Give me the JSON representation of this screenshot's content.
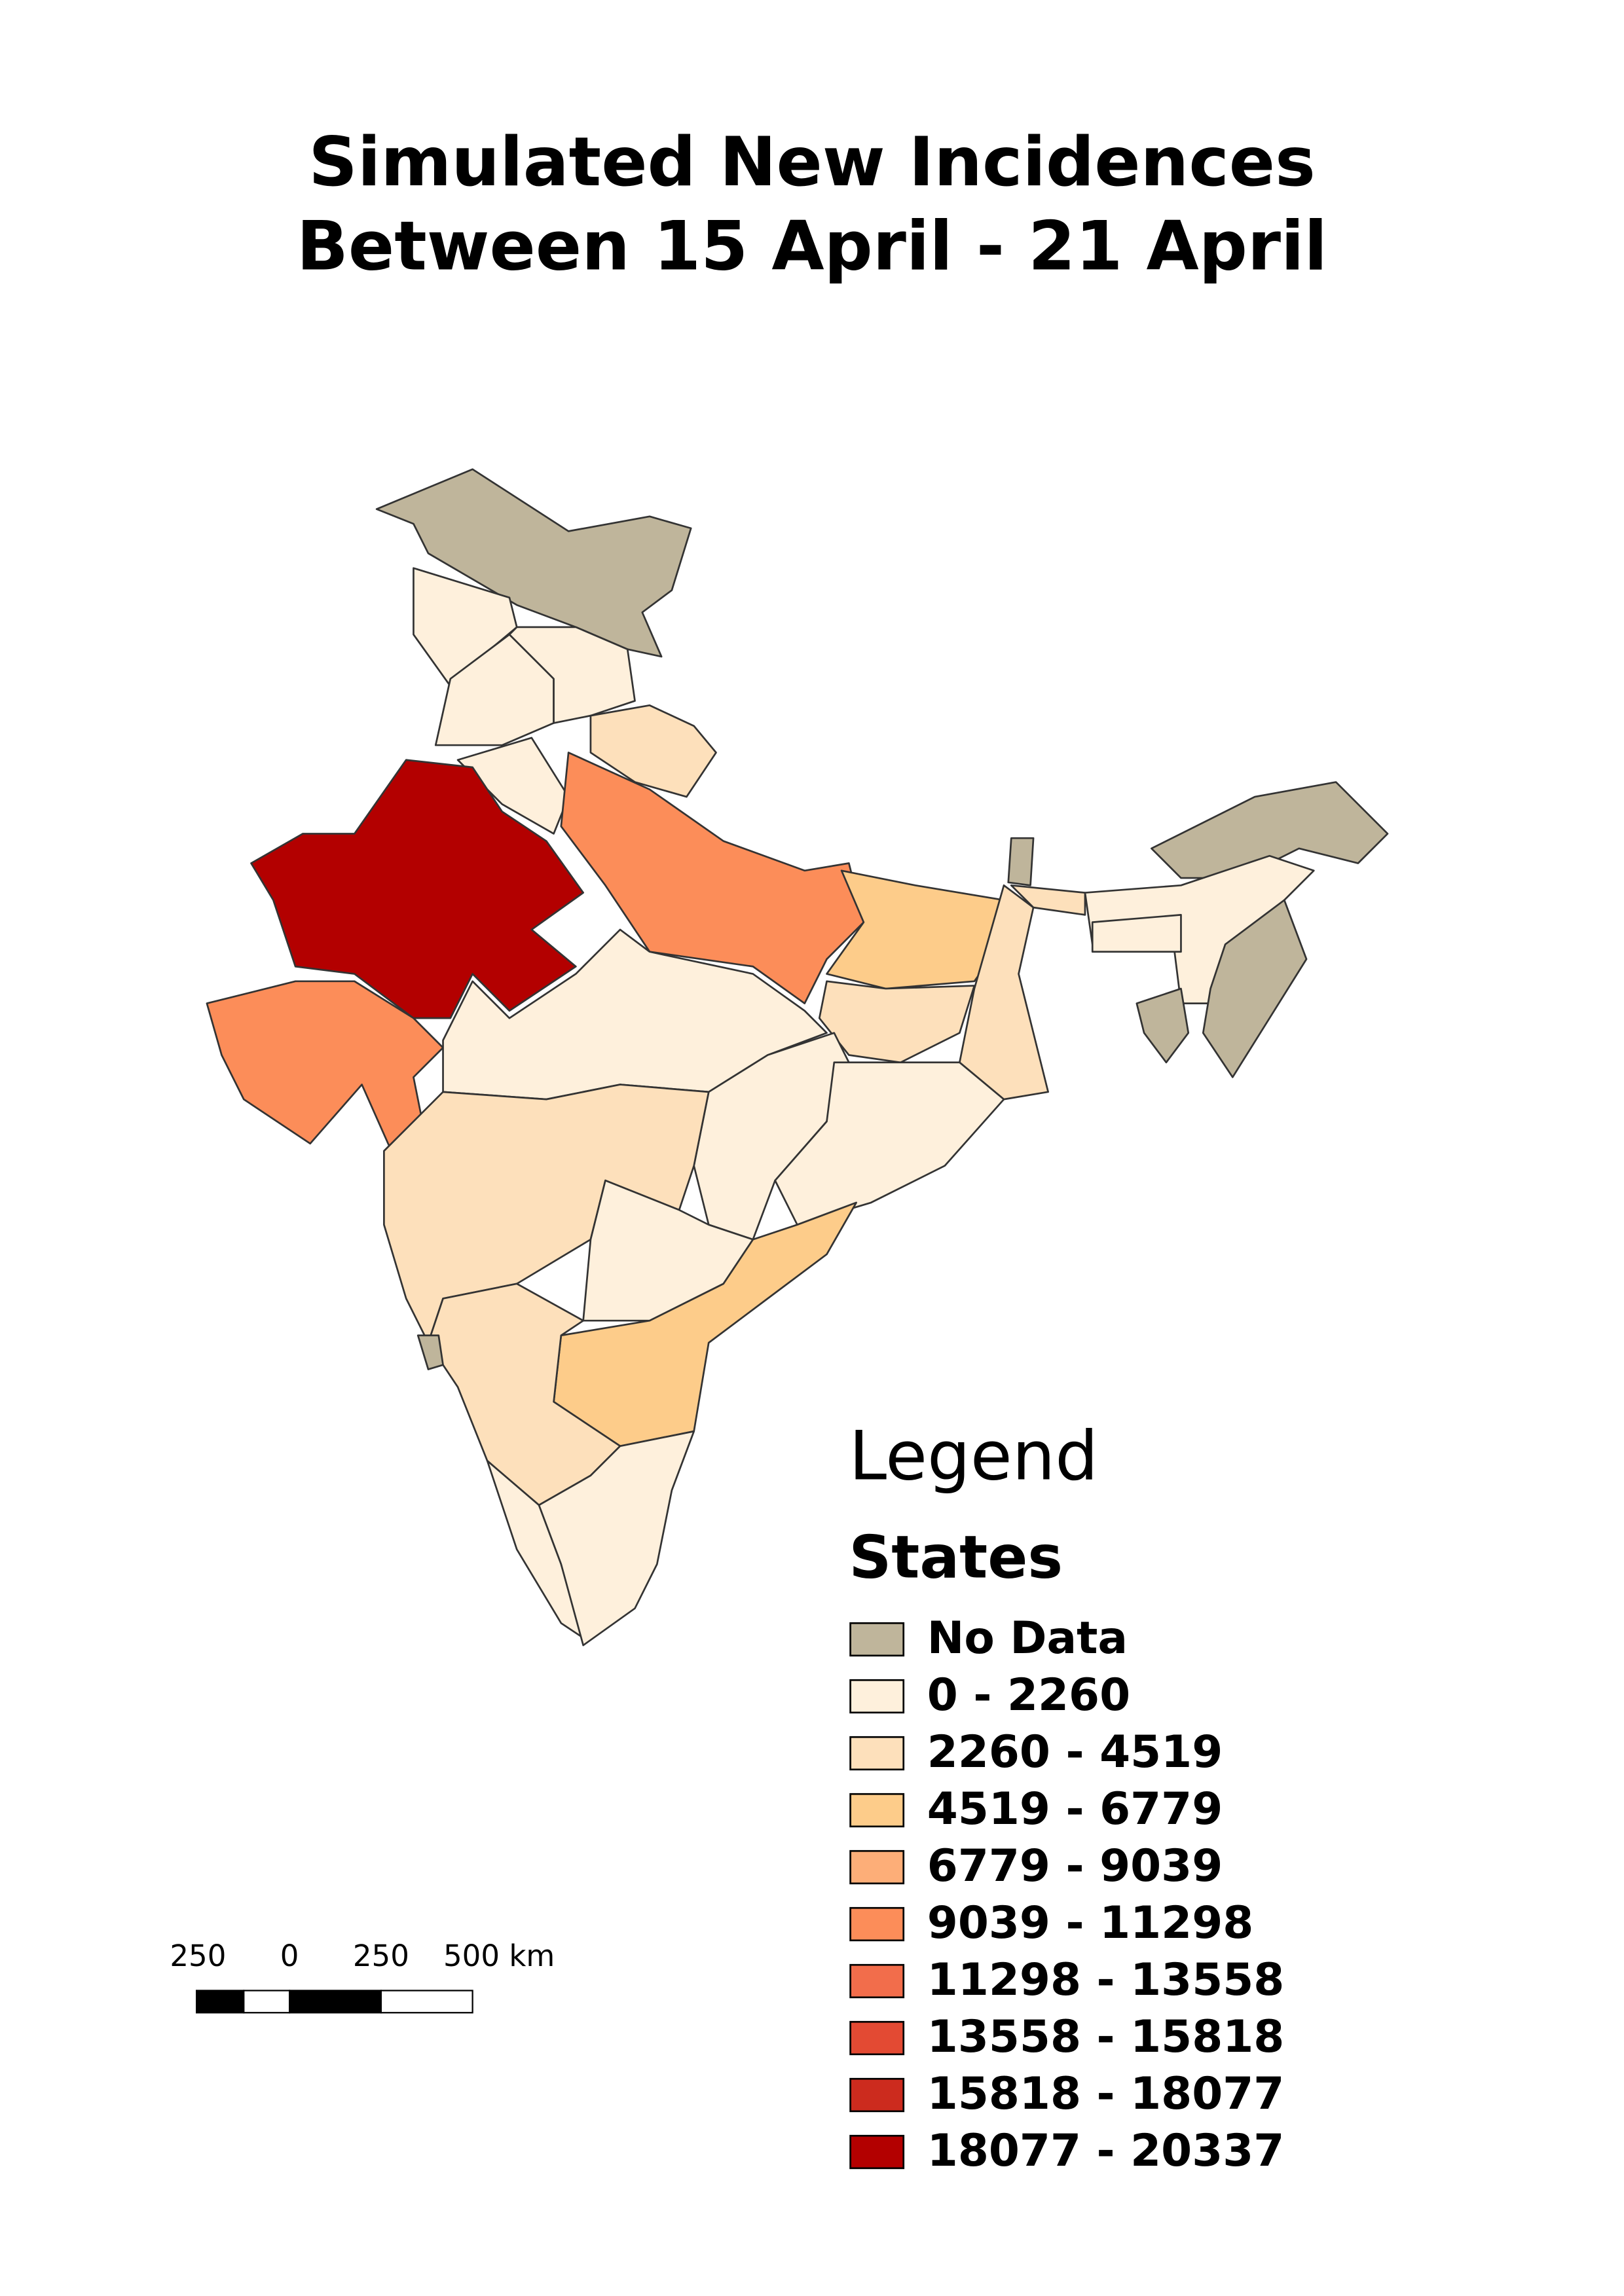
{
  "title": [
    "Simulated New Incidences",
    "Between 15 April - 21 April"
  ],
  "legend": {
    "heading": "Legend",
    "title": "States",
    "items": [
      {
        "label": "No Data",
        "color": "#bfb59b"
      },
      {
        "label": "0 - 2260",
        "color": "#fef0dc"
      },
      {
        "label": "2260 - 4519",
        "color": "#fde0bb"
      },
      {
        "label": "4519 - 6779",
        "color": "#fdcc8a"
      },
      {
        "label": "6779 - 9039",
        "color": "#fdae78"
      },
      {
        "label": "9039 - 11298",
        "color": "#fc8d59"
      },
      {
        "label": "11298 - 13558",
        "color": "#f26d4b"
      },
      {
        "label": "13558 - 15818",
        "color": "#e34a33"
      },
      {
        "label": "15818 - 18077",
        "color": "#cc2b1e"
      },
      {
        "label": "18077 - 20337",
        "color": "#b30000"
      }
    ]
  },
  "scale_bar": {
    "labels": [
      "250",
      "0",
      "250",
      "500 km"
    ]
  }
}
